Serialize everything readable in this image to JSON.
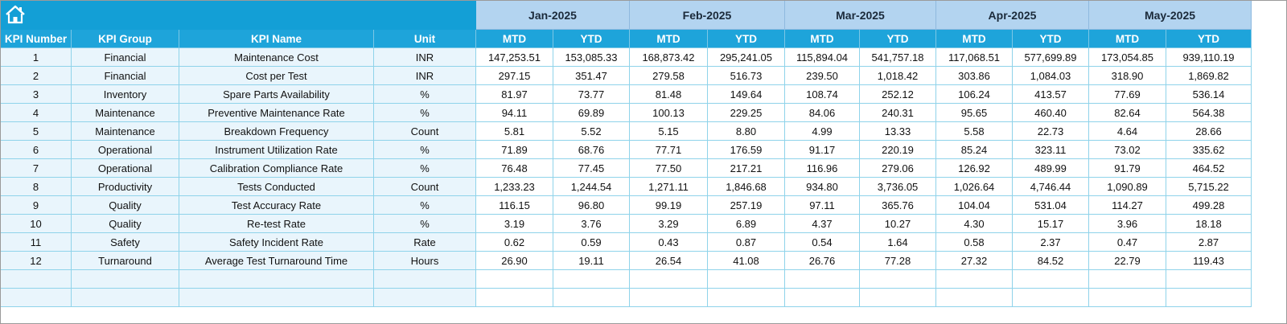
{
  "header": {
    "columns": [
      "KPI Number",
      "KPI Group",
      "KPI Name",
      "Unit"
    ],
    "months": [
      {
        "name": "Jan-2025",
        "sub": [
          "MTD",
          "YTD"
        ]
      },
      {
        "name": "Feb-2025",
        "sub": [
          "MTD",
          "YTD"
        ]
      },
      {
        "name": "Mar-2025",
        "sub": [
          "MTD",
          "YTD"
        ]
      },
      {
        "name": "Apr-2025",
        "sub": [
          "MTD",
          "YTD"
        ]
      },
      {
        "name": "May-2025",
        "sub": [
          "MTD",
          "YTD"
        ]
      }
    ]
  },
  "table": {
    "rows": [
      [
        "1",
        "Financial",
        "Maintenance Cost",
        "INR",
        "147,253.51",
        "153,085.33",
        "168,873.42",
        "295,241.05",
        "115,894.04",
        "541,757.18",
        "117,068.51",
        "577,699.89",
        "173,054.85",
        "939,110.19"
      ],
      [
        "2",
        "Financial",
        "Cost per Test",
        "INR",
        "297.15",
        "351.47",
        "279.58",
        "516.73",
        "239.50",
        "1,018.42",
        "303.86",
        "1,084.03",
        "318.90",
        "1,869.82"
      ],
      [
        "3",
        "Inventory",
        "Spare Parts Availability",
        "%",
        "81.97",
        "73.77",
        "81.48",
        "149.64",
        "108.74",
        "252.12",
        "106.24",
        "413.57",
        "77.69",
        "536.14"
      ],
      [
        "4",
        "Maintenance",
        "Preventive Maintenance Rate",
        "%",
        "94.11",
        "69.89",
        "100.13",
        "229.25",
        "84.06",
        "240.31",
        "95.65",
        "460.40",
        "82.64",
        "564.38"
      ],
      [
        "5",
        "Maintenance",
        "Breakdown Frequency",
        "Count",
        "5.81",
        "5.52",
        "5.15",
        "8.80",
        "4.99",
        "13.33",
        "5.58",
        "22.73",
        "4.64",
        "28.66"
      ],
      [
        "6",
        "Operational",
        "Instrument Utilization Rate",
        "%",
        "71.89",
        "68.76",
        "77.71",
        "176.59",
        "91.17",
        "220.19",
        "85.24",
        "323.11",
        "73.02",
        "335.62"
      ],
      [
        "7",
        "Operational",
        "Calibration Compliance Rate",
        "%",
        "76.48",
        "77.45",
        "77.50",
        "217.21",
        "116.96",
        "279.06",
        "126.92",
        "489.99",
        "91.79",
        "464.52"
      ],
      [
        "8",
        "Productivity",
        "Tests Conducted",
        "Count",
        "1,233.23",
        "1,244.54",
        "1,271.11",
        "1,846.68",
        "934.80",
        "3,736.05",
        "1,026.64",
        "4,746.44",
        "1,090.89",
        "5,715.22"
      ],
      [
        "9",
        "Quality",
        "Test Accuracy Rate",
        "%",
        "116.15",
        "96.80",
        "99.19",
        "257.19",
        "97.11",
        "365.76",
        "104.04",
        "531.04",
        "114.27",
        "499.28"
      ],
      [
        "10",
        "Quality",
        "Re-test Rate",
        "%",
        "3.19",
        "3.76",
        "3.29",
        "6.89",
        "4.37",
        "10.27",
        "4.30",
        "15.17",
        "3.96",
        "18.18"
      ],
      [
        "11",
        "Safety",
        "Safety Incident Rate",
        "Rate",
        "0.62",
        "0.59",
        "0.43",
        "0.87",
        "0.54",
        "1.64",
        "0.58",
        "2.37",
        "0.47",
        "2.87"
      ],
      [
        "12",
        "Turnaround",
        "Average Test Turnaround Time",
        "Hours",
        "26.90",
        "19.11",
        "26.54",
        "41.08",
        "26.76",
        "77.28",
        "27.32",
        "84.52",
        "22.79",
        "119.43"
      ]
    ]
  }
}
